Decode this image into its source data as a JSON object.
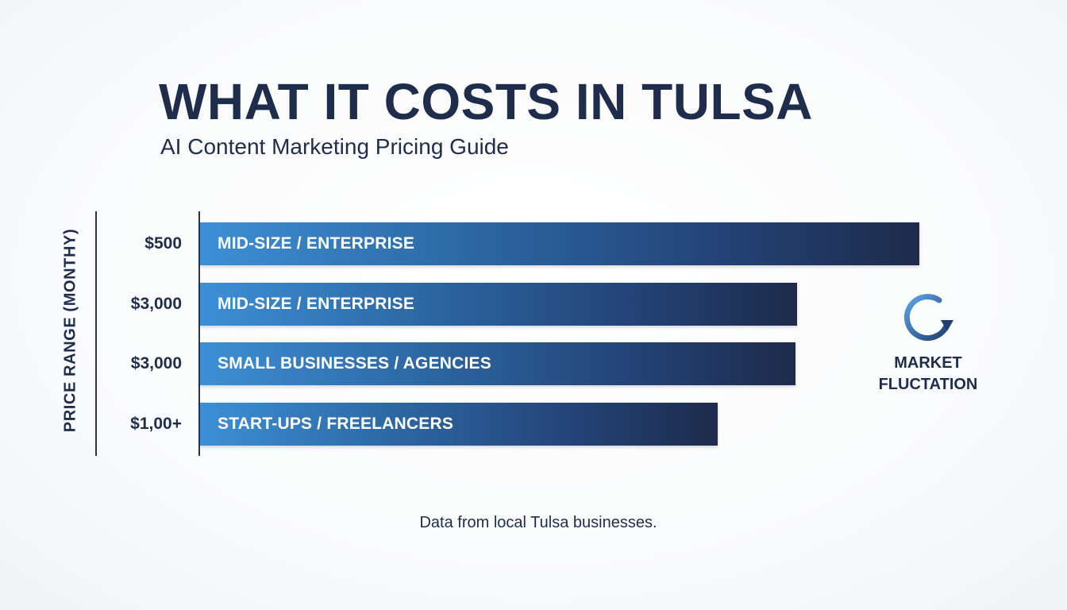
{
  "chart_data": {
    "type": "bar",
    "orientation": "horizontal",
    "title": "WHAT IT COSTS IN TULSA",
    "subtitle": "AI Content Marketing Pricing Guide",
    "ylabel": "PRICE RANGE (MONTHY)",
    "xlabel": "",
    "grid": false,
    "categories": [
      "$500",
      "$3,000",
      "$3,000",
      "$1,00+"
    ],
    "bar_labels": [
      "MID-SIZE / ENTERPRISE",
      "MID-SIZE / ENTERPRISE",
      "SMALL BUSINESSES / AGENCIES",
      "START-UPS / FREELANCERS"
    ],
    "values": [
      1.0,
      0.83,
      0.828,
      0.72
    ],
    "annotation": "MARKET FLUCTATION",
    "note": "Data from local Tulsa businesses."
  },
  "colors": {
    "text": "#1f2d4d",
    "bar_start": "#3d8fd6",
    "bar_end": "#1d2b4b",
    "icon_light": "#5aa6e8",
    "icon_dark": "#1f3f73"
  },
  "icons": {
    "annotation_icon": "cycle-arrow-icon"
  }
}
